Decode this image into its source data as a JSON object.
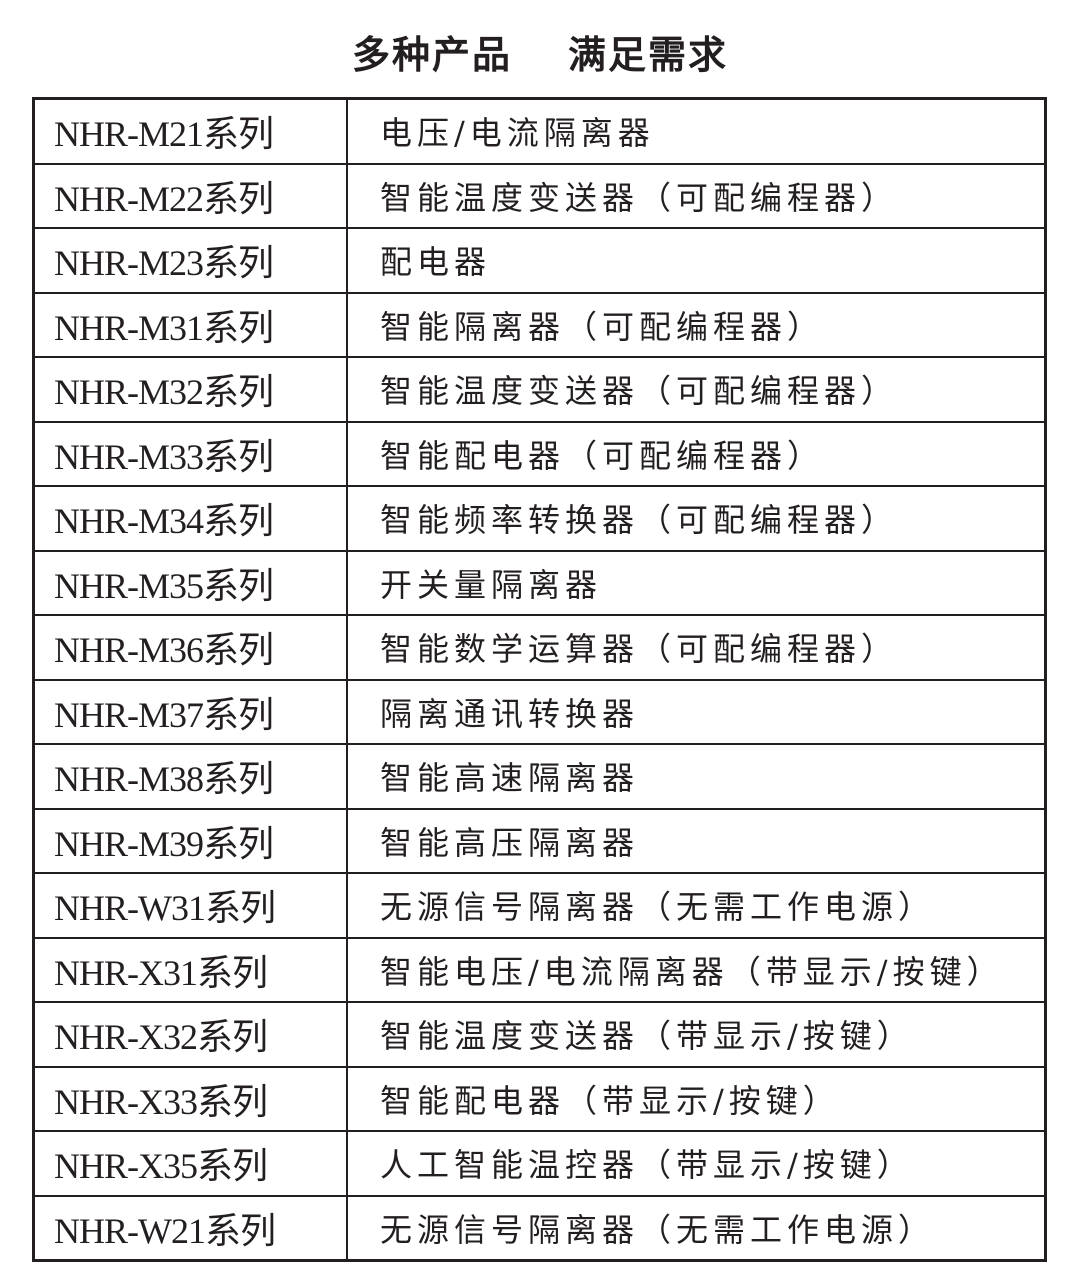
{
  "title": {
    "part1": "多种产品",
    "part2": "满足需求"
  },
  "rows": [
    {
      "series": "NHR-M21系列",
      "desc": "电压/电流隔离器"
    },
    {
      "series": "NHR-M22系列",
      "desc": "智能温度变送器（可配编程器）"
    },
    {
      "series": "NHR-M23系列",
      "desc": "配电器"
    },
    {
      "series": "NHR-M31系列",
      "desc": "智能隔离器（可配编程器）"
    },
    {
      "series": "NHR-M32系列",
      "desc": "智能温度变送器（可配编程器）"
    },
    {
      "series": "NHR-M33系列",
      "desc": "智能配电器（可配编程器）"
    },
    {
      "series": "NHR-M34系列",
      "desc": "智能频率转换器（可配编程器）"
    },
    {
      "series": "NHR-M35系列",
      "desc": "开关量隔离器"
    },
    {
      "series": "NHR-M36系列",
      "desc": "智能数学运算器（可配编程器）"
    },
    {
      "series": "NHR-M37系列",
      "desc": "隔离通讯转换器"
    },
    {
      "series": "NHR-M38系列",
      "desc": "智能高速隔离器"
    },
    {
      "series": "NHR-M39系列",
      "desc": "智能高压隔离器"
    },
    {
      "series": "NHR-W31系列",
      "desc": "无源信号隔离器（无需工作电源）"
    },
    {
      "series": "NHR-X31系列",
      "desc": "智能电压/电流隔离器（带显示/按键）"
    },
    {
      "series": "NHR-X32系列",
      "desc": "智能温度变送器（带显示/按键）"
    },
    {
      "series": "NHR-X33系列",
      "desc": "智能配电器（带显示/按键）"
    },
    {
      "series": "NHR-X35系列",
      "desc": "人工智能温控器（带显示/按键）"
    },
    {
      "series": "NHR-W21系列",
      "desc": "无源信号隔离器（无需工作电源）"
    }
  ]
}
